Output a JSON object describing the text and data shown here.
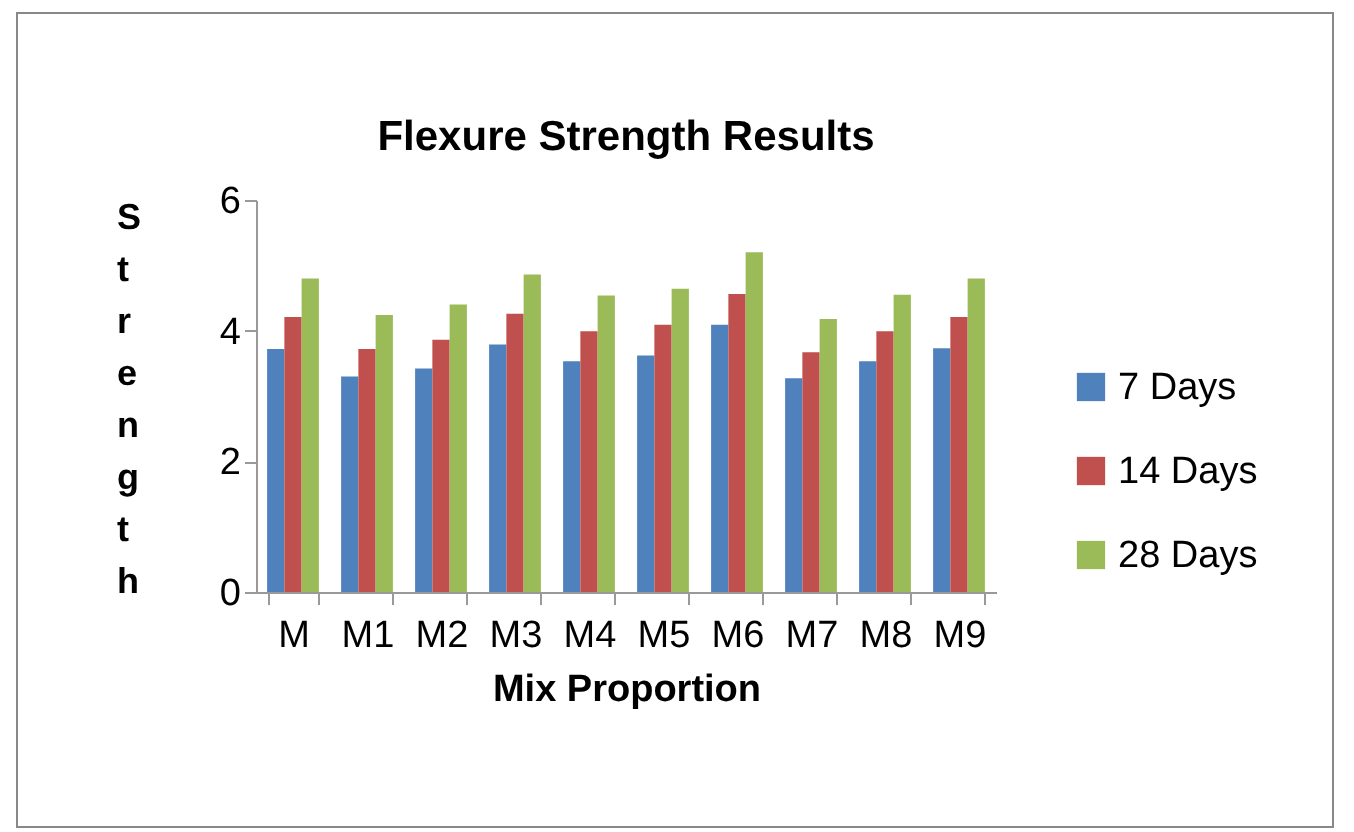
{
  "chart_data": {
    "type": "bar",
    "title": "Flexure Strength Results",
    "xlabel": "Mix Proportion",
    "ylabel": "Strength",
    "categories": [
      "M",
      "M1",
      "M2",
      "M3",
      "M4",
      "M5",
      "M6",
      "M7",
      "M8",
      "M9"
    ],
    "series": [
      {
        "name": "7 Days",
        "color": "#4f81bd",
        "values": [
          3.72,
          3.3,
          3.42,
          3.79,
          3.53,
          3.62,
          4.09,
          3.27,
          3.53,
          3.73
        ]
      },
      {
        "name": "14 Days",
        "color": "#c0504d",
        "values": [
          4.21,
          3.72,
          3.86,
          4.26,
          3.99,
          4.09,
          4.56,
          3.67,
          3.99,
          4.21
        ]
      },
      {
        "name": "28 Days",
        "color": "#9bbb59",
        "values": [
          4.8,
          4.24,
          4.4,
          4.86,
          4.54,
          4.64,
          5.2,
          4.18,
          4.55,
          4.8
        ]
      }
    ],
    "ylim": [
      0,
      6
    ],
    "yticks": [
      0,
      2,
      4,
      6
    ],
    "grid": false,
    "legend": "right"
  }
}
